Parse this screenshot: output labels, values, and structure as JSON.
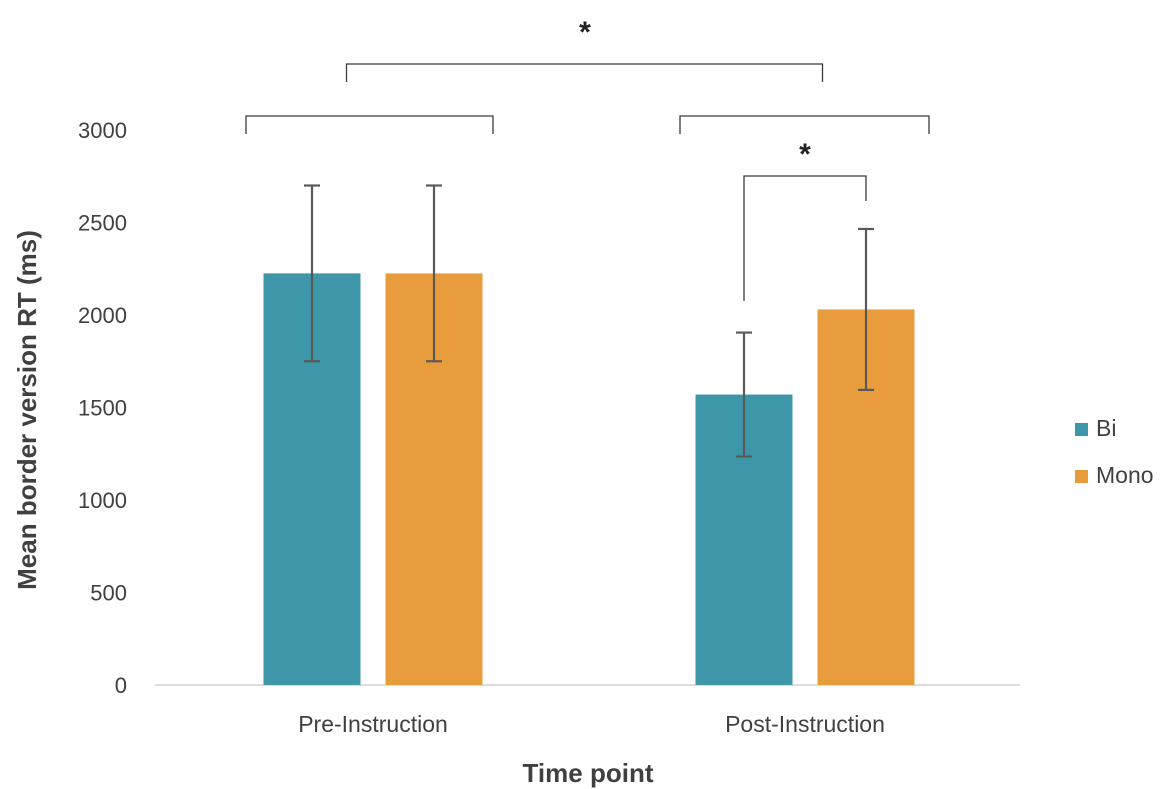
{
  "chart_data": {
    "type": "bar",
    "title": "",
    "xlabel": "Time point",
    "ylabel": "Mean border version RT (ms)",
    "categories": [
      "Pre-Instruction",
      "Post-Instruction"
    ],
    "ylim": [
      0,
      3000
    ],
    "yticks": [
      0,
      500,
      1000,
      1500,
      2000,
      2500,
      3000
    ],
    "grid": false,
    "legend_position": "right",
    "series": [
      {
        "name": "Bi",
        "color": "#3d97a9",
        "values": [
          2225,
          1570
        ],
        "error": [
          475,
          335
        ]
      },
      {
        "name": "Mono",
        "color": "#e99c3c",
        "values": [
          2225,
          2030
        ],
        "error": [
          475,
          435
        ]
      }
    ],
    "annotations": [
      {
        "label": "*",
        "between": "Pre-Instruction vs Post-Instruction"
      },
      {
        "label": "*",
        "between": "Post-Instruction Bi vs Mono"
      }
    ]
  }
}
